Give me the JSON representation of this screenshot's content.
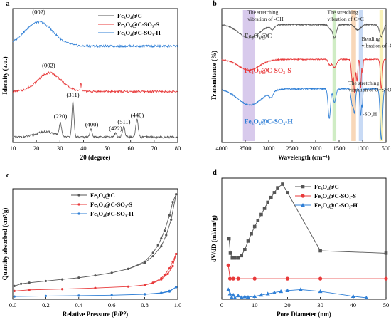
{
  "chart_data": [
    {
      "id": "a",
      "type": "line",
      "panel_label": "a",
      "xlabel": "2θ (degree)",
      "ylabel": "Idensity (a.u.)",
      "xlim": [
        10,
        80
      ],
      "xticks": [
        10,
        20,
        30,
        40,
        50,
        60,
        70,
        80
      ],
      "yticks_labeled": false,
      "legend": {
        "position": "top-right",
        "entries": [
          "Fe₃O₄@C",
          "Fe₃O₄@C-SO₃-S",
          "Fe₃O₄@C-SO₃-H"
        ]
      },
      "colors": [
        "#555555",
        "#e8393a",
        "#2f7fd6"
      ],
      "series": [
        {
          "name": "Fe₃O₄@C-SO₃-H",
          "baseline": 72,
          "peaks": [
            [
              21,
              18,
              6
            ]
          ]
        },
        {
          "name": "Fe₃O₄@C-SO₃-S",
          "baseline": 38,
          "peaks": [
            [
              25.5,
              14,
              5
            ],
            [
              39,
              6,
              0.3
            ]
          ]
        },
        {
          "name": "Fe₃O₄@C",
          "baseline": 4,
          "peaks": [
            [
              24,
              4,
              4
            ],
            [
              30.2,
              10,
              0.45
            ],
            [
              35.5,
              26,
              0.45
            ],
            [
              43.2,
              6,
              0.5
            ],
            [
              53.6,
              3,
              0.5
            ],
            [
              57.1,
              8,
              0.5
            ],
            [
              62.7,
              13,
              0.5
            ]
          ]
        }
      ],
      "annotations": [
        {
          "text": "(002)",
          "x": 21,
          "y": 96
        },
        {
          "text": "(002)",
          "x": 25.2,
          "y": 56
        },
        {
          "text": "(311)",
          "x": 35.5,
          "y": 34
        },
        {
          "text": "(220)",
          "x": 30.2,
          "y": 18
        },
        {
          "text": "(400)",
          "x": 43.5,
          "y": 12
        },
        {
          "text": "(422)",
          "x": 53.6,
          "y": 9
        },
        {
          "text": "(511)",
          "x": 57.2,
          "y": 14
        },
        {
          "text": "(440)",
          "x": 62.8,
          "y": 19
        }
      ]
    },
    {
      "id": "b",
      "type": "line",
      "panel_label": "b",
      "xlabel": "Wavelength (cm⁻¹)",
      "ylabel": "Transmitance (%)",
      "xlim": [
        4000,
        500
      ],
      "xticks": [
        4000,
        3500,
        3000,
        2500,
        2000,
        1500,
        1000,
        500
      ],
      "yticks_labeled": false,
      "colors": [
        "#555555",
        "#e8393a",
        "#2f7fd6"
      ],
      "curve_labels": [
        "Fe₃O₄@C",
        "Fe₃O₄@C-SO₃-S",
        "Fe₃O₄@C-SO₃-H"
      ],
      "highlight_bands": [
        {
          "from": 3550,
          "to": 3300,
          "color": "#cbb8e6"
        },
        {
          "from": 1640,
          "to": 1560,
          "color": "#bfe6b0"
        },
        {
          "from": 1240,
          "to": 1140,
          "color": "#f6c9a0"
        },
        {
          "from": 1080,
          "to": 1000,
          "color": "#b5cdf2"
        },
        {
          "from": 640,
          "to": 560,
          "color": "#f7eea0"
        }
      ],
      "series": [
        {
          "name": "Fe₃O₄@C",
          "baseline": 88,
          "dips": [
            [
              3420,
              10,
              220
            ],
            [
              2920,
              3,
              40
            ],
            [
              1700,
              3,
              30
            ],
            [
              1600,
              10,
              40
            ],
            [
              1100,
              4,
              60
            ],
            [
              600,
              9,
              40
            ]
          ]
        },
        {
          "name": "Fe₃O₄@C-SO₃-S",
          "baseline": 62,
          "dips": [
            [
              3420,
              8,
              220
            ],
            [
              1700,
              4,
              30
            ],
            [
              1600,
              6,
              40
            ],
            [
              1220,
              16,
              20
            ],
            [
              1170,
              24,
              15
            ],
            [
              1120,
              16,
              15
            ],
            [
              1040,
              22,
              12
            ],
            [
              1000,
              10,
              10
            ],
            [
              600,
              22,
              20
            ]
          ]
        },
        {
          "name": "Fe₃O₄@C-SO₃-H",
          "baseline": 40,
          "dips": [
            [
              3400,
              12,
              260
            ],
            [
              2950,
              4,
              40
            ],
            [
              1710,
              22,
              25
            ],
            [
              1600,
              10,
              30
            ],
            [
              1220,
              12,
              25
            ],
            [
              1170,
              16,
              20
            ],
            [
              1040,
              20,
              15
            ],
            [
              1005,
              12,
              10
            ],
            [
              600,
              38,
              25
            ]
          ]
        }
      ],
      "annotations": [
        {
          "text": "The stretching",
          "x": 3450,
          "y": 96
        },
        {
          "text": "vibration of -OH",
          "x": 3450,
          "y": 91
        },
        {
          "text": "The stretching",
          "x": 1750,
          "y": 96
        },
        {
          "text": "vibration of C=C",
          "x": 1750,
          "y": 91
        },
        {
          "text": "Bending",
          "x": 1020,
          "y": 76
        },
        {
          "text": "vibration of -C-S",
          "x": 1020,
          "y": 71
        },
        {
          "text": "The stretching",
          "x": 1300,
          "y": 43
        },
        {
          "text": "vibration of O=S=O",
          "x": 1300,
          "y": 38
        },
        {
          "text": "-SO₃H",
          "x": 1000,
          "y": 20
        }
      ]
    },
    {
      "id": "c",
      "type": "line",
      "panel_label": "c",
      "xlabel": "Relative Pressure (P/P⁰)",
      "ylabel": "Quantity absorbed (cm³/g)",
      "xlim": [
        0,
        1.0
      ],
      "xticks": [
        0.0,
        0.2,
        0.4,
        0.6,
        0.8,
        1.0
      ],
      "xtick_labels": [
        "0.0",
        "0.2",
        "0.4",
        "0.6",
        "0.8",
        "1.0"
      ],
      "ylim": [
        0,
        100
      ],
      "yticks_labeled": false,
      "legend": {
        "position": "top-left",
        "entries": [
          "Fe₃O₄@C",
          "Fe₃O₄@C-SO₃-S",
          "Fe₃O₄@C-SO₃-H"
        ]
      },
      "colors": [
        "#555555",
        "#e8393a",
        "#2f7fd6"
      ],
      "series": [
        {
          "name": "Fe₃O₄@C",
          "adsorption": [
            [
              0.01,
              12
            ],
            [
              0.05,
              14
            ],
            [
              0.1,
              15
            ],
            [
              0.2,
              16.5
            ],
            [
              0.3,
              18
            ],
            [
              0.4,
              19.5
            ],
            [
              0.5,
              21.5
            ],
            [
              0.6,
              24
            ],
            [
              0.7,
              27.5
            ],
            [
              0.8,
              33
            ],
            [
              0.85,
              39
            ],
            [
              0.9,
              48
            ],
            [
              0.93,
              58
            ],
            [
              0.96,
              72
            ],
            [
              0.99,
              95
            ]
          ],
          "desorption": [
            [
              0.99,
              95
            ],
            [
              0.97,
              88
            ],
            [
              0.95,
              76
            ],
            [
              0.92,
              62
            ],
            [
              0.9,
              55
            ],
            [
              0.88,
              49
            ],
            [
              0.85,
              42
            ],
            [
              0.8,
              34
            ],
            [
              0.7,
              27.5
            ]
          ]
        },
        {
          "name": "Fe₃O₄@C-SO₃-S",
          "adsorption": [
            [
              0.01,
              7.5
            ],
            [
              0.1,
              8.5
            ],
            [
              0.3,
              9.2
            ],
            [
              0.5,
              10.2
            ],
            [
              0.7,
              11.5
            ],
            [
              0.8,
              13
            ],
            [
              0.85,
              14.5
            ],
            [
              0.9,
              18
            ],
            [
              0.94,
              23
            ],
            [
              0.97,
              30
            ],
            [
              0.99,
              41
            ]
          ],
          "desorption": [
            [
              0.99,
              41
            ],
            [
              0.97,
              34
            ],
            [
              0.95,
              28
            ],
            [
              0.92,
              22
            ],
            [
              0.9,
              19
            ],
            [
              0.85,
              15
            ],
            [
              0.8,
              13
            ]
          ]
        },
        {
          "name": "Fe₃O₄@C-SO₃-H",
          "adsorption": [
            [
              0.01,
              2.5
            ],
            [
              0.2,
              3
            ],
            [
              0.4,
              3.3
            ],
            [
              0.6,
              3.7
            ],
            [
              0.8,
              4.5
            ],
            [
              0.9,
              5.5
            ],
            [
              0.95,
              7
            ],
            [
              0.99,
              11
            ]
          ],
          "desorption": [
            [
              0.99,
              11
            ],
            [
              0.95,
              7.5
            ],
            [
              0.9,
              5.8
            ],
            [
              0.8,
              4.6
            ]
          ]
        }
      ]
    },
    {
      "id": "d",
      "type": "line",
      "panel_label": "d",
      "xlabel": "Pore Diameter (nm)",
      "ylabel": "dV/dD (ml/nm/g)",
      "xlim": [
        0,
        50
      ],
      "xticks": [
        0,
        10,
        20,
        30,
        40,
        50
      ],
      "ylim": [
        0,
        100
      ],
      "yticks_labeled": false,
      "legend": {
        "position": "top-right",
        "entries": [
          "Fe₃O₄@C",
          "Fe₃O₄@C-SO₃-S",
          "Fe₃O₄@C-SO₃-H"
        ]
      },
      "colors": [
        "#555555",
        "#e8393a",
        "#2f7fd6"
      ],
      "series": [
        {
          "name": "Fe₃O₄@C",
          "x": [
            2.2,
            2.6,
            3.2,
            4,
            5,
            6,
            7,
            8,
            9,
            10,
            11,
            12,
            13,
            14,
            15,
            16,
            17,
            18.5,
            20,
            30,
            50
          ],
          "y": [
            50,
            38,
            34,
            34,
            34,
            36,
            41,
            48,
            54,
            60,
            65,
            70,
            75,
            80,
            84,
            88,
            92,
            95,
            88,
            40,
            38
          ]
        },
        {
          "name": "Fe₃O₄@C-SO₃-S",
          "x": [
            2,
            2.5,
            3.5,
            5,
            10,
            20,
            30,
            50
          ],
          "y": [
            28,
            17,
            17,
            17,
            17,
            17,
            17,
            17
          ]
        },
        {
          "name": "Fe₃O₄@C-SO₃-H",
          "x": [
            2,
            2.5,
            3,
            3.5,
            4,
            5,
            6,
            7,
            8,
            10,
            12,
            14,
            16,
            18,
            20,
            24,
            30,
            40,
            44
          ],
          "y": [
            8,
            4.5,
            1.5,
            3.5,
            1.2,
            3,
            1.5,
            2.2,
            1.8,
            2.5,
            3.5,
            4.5,
            5.5,
            6.5,
            7.2,
            8,
            6.5,
            2.5,
            1.2
          ]
        }
      ]
    }
  ]
}
